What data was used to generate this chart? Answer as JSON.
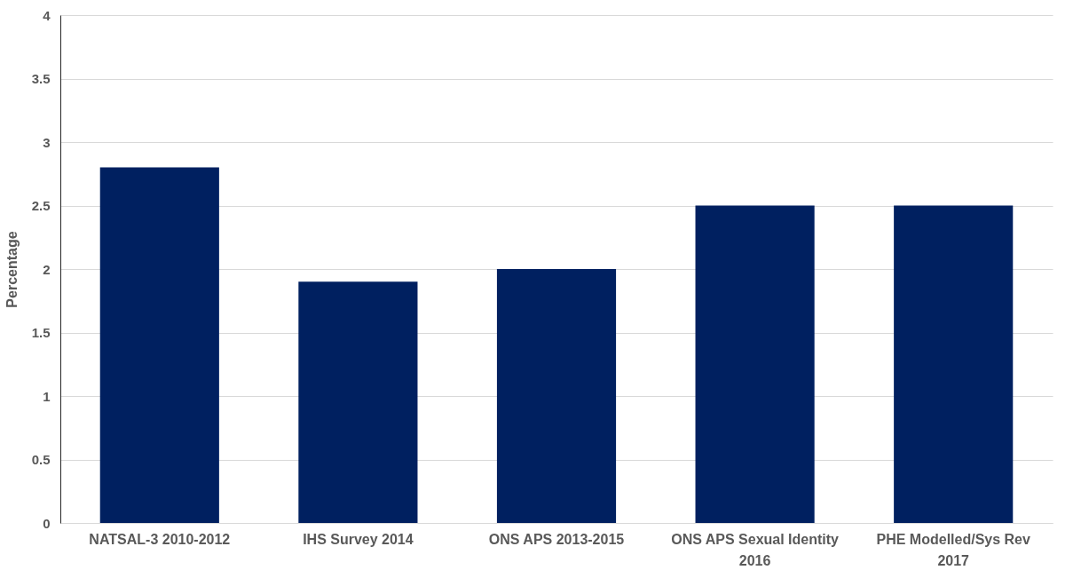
{
  "chart_data": {
    "type": "bar",
    "ylabel": "Percentage",
    "categories": [
      "NATSAL-3 2010-2012",
      "IHS Survey 2014",
      "ONS APS 2013-2015",
      "ONS APS Sexual Identity 2016",
      "PHE Modelled/Sys Rev 2017"
    ],
    "values": [
      2.8,
      1.9,
      2.0,
      2.5,
      2.5
    ],
    "color": "#002060",
    "ylim": [
      0,
      4
    ],
    "yticks": [
      0,
      0.5,
      1,
      1.5,
      2,
      2.5,
      3,
      3.5,
      4
    ],
    "grid": "y"
  }
}
